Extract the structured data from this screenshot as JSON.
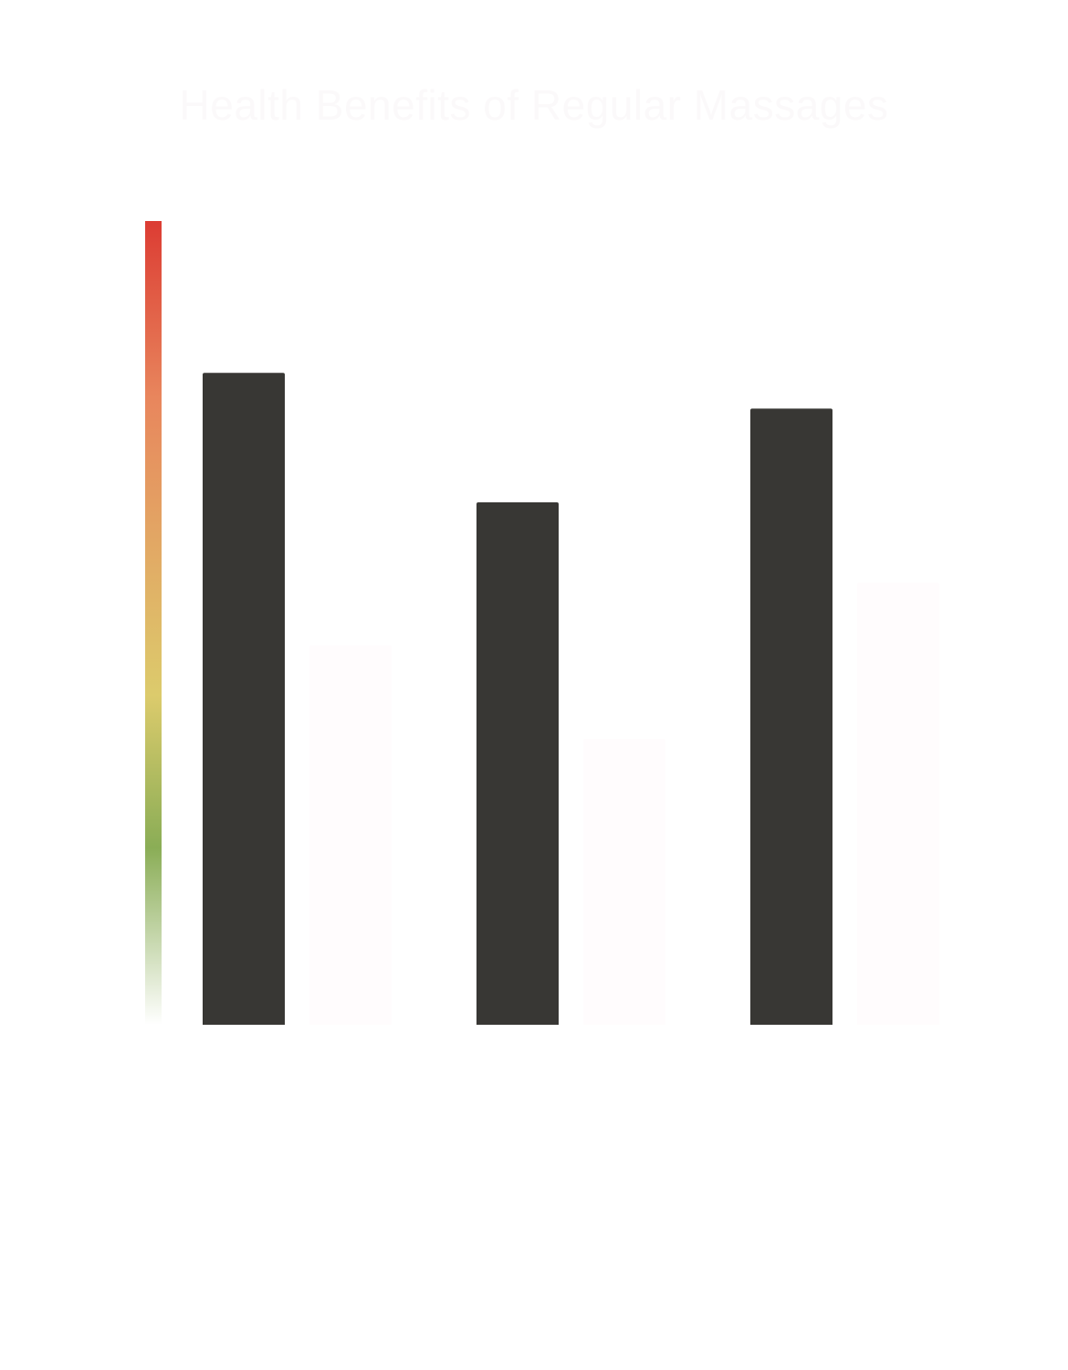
{
  "chart_data": {
    "type": "bar",
    "title": "Health Benefits of Regular Massages",
    "xlabel": "",
    "ylabel": "",
    "categories": [
      "",
      "",
      ""
    ],
    "series": [
      {
        "values": [
          7.3,
          5.85,
          6.9
        ]
      },
      {
        "values": [
          4.25,
          3.2,
          4.95
        ]
      }
    ],
    "ylim": [
      0,
      9
    ],
    "grid": false,
    "legend": "none",
    "colors": {
      "series_1": "#383734",
      "series_2": "#fffcfd",
      "scale_bar_top": "#dc3c33",
      "scale_bar_upper": "#e8865d",
      "scale_bar_mid": "#dccb6c",
      "scale_bar_lower": "#8aad56",
      "scale_bar_bottom": "#ffffff"
    }
  }
}
